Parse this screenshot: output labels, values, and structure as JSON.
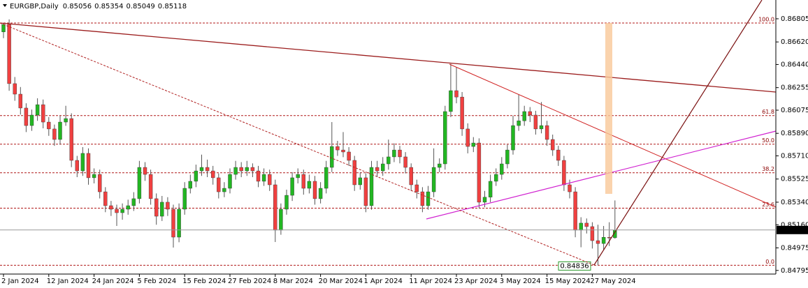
{
  "chart_data": {
    "type": "candlestick",
    "title": "EURGBP,Daily",
    "ylim": [
      0.84766,
      0.86955
    ],
    "yticks": [
      0.86805,
      {
        "value": 0.8662,
        "label": "0.86620"
      },
      {
        "value": 0.8644,
        "label": "0.86440"
      },
      0.86255,
      0.86075,
      {
        "value": 0.8589,
        "label": "0.85890"
      },
      {
        "value": 0.8571,
        "label": "0.85710"
      },
      0.85525,
      {
        "value": 0.8534,
        "label": "0.85340"
      },
      {
        "value": 0.8516,
        "label": "0.85160"
      },
      0.84975,
      0.84795
    ],
    "categories": [
      "2 Jan 2024",
      null,
      null,
      null,
      null,
      null,
      null,
      null,
      "12 Jan 2024",
      null,
      null,
      null,
      null,
      null,
      null,
      null,
      "24 Jan 2024",
      null,
      null,
      null,
      null,
      null,
      null,
      null,
      "5 Feb 2024",
      null,
      null,
      null,
      null,
      null,
      null,
      null,
      "15 Feb 2024",
      null,
      null,
      null,
      null,
      null,
      null,
      null,
      "27 Feb 2024",
      null,
      null,
      null,
      null,
      null,
      null,
      null,
      "8 Mar 2024",
      null,
      null,
      null,
      null,
      null,
      null,
      null,
      "20 Mar 2024",
      null,
      null,
      null,
      null,
      null,
      null,
      null,
      "1 Apr 2024",
      null,
      null,
      null,
      null,
      null,
      null,
      null,
      "11 Apr 2024",
      null,
      null,
      null,
      null,
      null,
      null,
      null,
      "23 Apr 2024",
      null,
      null,
      null,
      null,
      null,
      null,
      null,
      "3 May 2024",
      null,
      null,
      null,
      null,
      null,
      null,
      null,
      "15 May 2024",
      null,
      null,
      null,
      null,
      null,
      null,
      null,
      "27 May 2024",
      null,
      null,
      null,
      null
    ],
    "up_color": "#22b622",
    "down_color": "#f04040",
    "series": [
      {
        "name": "EURGBP",
        "values": [
          [
            0.867,
            0.86771,
            0.8665,
            0.8676
          ],
          [
            0.8676,
            0.868,
            0.8623,
            0.86287
          ],
          [
            0.86287,
            0.8634,
            0.8615,
            0.86203
          ],
          [
            0.86203,
            0.8626,
            0.8604,
            0.86092
          ],
          [
            0.86092,
            0.8613,
            0.859,
            0.85952
          ],
          [
            0.85952,
            0.8608,
            0.8591,
            0.86036
          ],
          [
            0.86036,
            0.8617,
            0.8599,
            0.86119
          ],
          [
            0.86119,
            0.8616,
            0.8593,
            0.8598
          ],
          [
            0.8598,
            0.8602,
            0.8587,
            0.85925
          ],
          [
            0.85925,
            0.8596,
            0.8579,
            0.85841
          ],
          [
            0.85841,
            0.8603,
            0.858,
            0.8598
          ],
          [
            0.8598,
            0.8611,
            0.8595,
            0.86008
          ],
          [
            0.86008,
            0.8605,
            0.8562,
            0.85674
          ],
          [
            0.85674,
            0.8571,
            0.8554,
            0.8559
          ],
          [
            0.8559,
            0.8578,
            0.8555,
            0.8573
          ],
          [
            0.8573,
            0.8577,
            0.8548,
            0.85535
          ],
          [
            0.85535,
            0.8561,
            0.8549,
            0.85562
          ],
          [
            0.85562,
            0.856,
            0.8537,
            0.85423
          ],
          [
            0.85423,
            0.8546,
            0.8526,
            0.85312
          ],
          [
            0.85312,
            0.8535,
            0.8523,
            0.85284
          ],
          [
            0.85284,
            0.8532,
            0.8515,
            0.85256
          ],
          [
            0.85256,
            0.8533,
            0.852,
            0.85284
          ],
          [
            0.85284,
            0.8536,
            0.8524,
            0.85312
          ],
          [
            0.85312,
            0.8542,
            0.8527,
            0.85368
          ],
          [
            0.85368,
            0.8567,
            0.8533,
            0.85618
          ],
          [
            0.85618,
            0.8566,
            0.8551,
            0.85562
          ],
          [
            0.85562,
            0.856,
            0.8532,
            0.85368
          ],
          [
            0.85368,
            0.8541,
            0.8516,
            0.85228
          ],
          [
            0.85228,
            0.8539,
            0.8519,
            0.8534
          ],
          [
            0.8534,
            0.8538,
            0.8523,
            0.85284
          ],
          [
            0.85284,
            0.8532,
            0.84978,
            0.85061
          ],
          [
            0.85061,
            0.8533,
            0.8502,
            0.85284
          ],
          [
            0.85284,
            0.855,
            0.8524,
            0.85451
          ],
          [
            0.85451,
            0.8556,
            0.8541,
            0.85507
          ],
          [
            0.85507,
            0.8564,
            0.8546,
            0.8559
          ],
          [
            0.8559,
            0.8572,
            0.8555,
            0.85618
          ],
          [
            0.85618,
            0.8568,
            0.8554,
            0.8559
          ],
          [
            0.8559,
            0.8563,
            0.8548,
            0.85535
          ],
          [
            0.85535,
            0.8557,
            0.8537,
            0.85423
          ],
          [
            0.85423,
            0.855,
            0.8538,
            0.85451
          ],
          [
            0.85451,
            0.8561,
            0.8541,
            0.85562
          ],
          [
            0.85562,
            0.8567,
            0.8552,
            0.85618
          ],
          [
            0.85618,
            0.8566,
            0.8554,
            0.8559
          ],
          [
            0.8559,
            0.8567,
            0.8555,
            0.85618
          ],
          [
            0.85618,
            0.8565,
            0.8554,
            0.8559
          ],
          [
            0.8559,
            0.8563,
            0.8546,
            0.85507
          ],
          [
            0.85507,
            0.8561,
            0.8547,
            0.85562
          ],
          [
            0.85562,
            0.856,
            0.8543,
            0.85479
          ],
          [
            0.85479,
            0.8552,
            0.85022,
            0.85117
          ],
          [
            0.85117,
            0.8533,
            0.8508,
            0.85284
          ],
          [
            0.85284,
            0.8544,
            0.8524,
            0.85395
          ],
          [
            0.85395,
            0.8558,
            0.8535,
            0.85535
          ],
          [
            0.85535,
            0.8561,
            0.8549,
            0.85562
          ],
          [
            0.85562,
            0.856,
            0.854,
            0.85451
          ],
          [
            0.85451,
            0.8556,
            0.8541,
            0.85507
          ],
          [
            0.85507,
            0.8555,
            0.8532,
            0.85368
          ],
          [
            0.85368,
            0.855,
            0.8533,
            0.85451
          ],
          [
            0.85451,
            0.8567,
            0.8541,
            0.85618
          ],
          [
            0.85618,
            0.8598,
            0.8558,
            0.85785
          ],
          [
            0.85785,
            0.8583,
            0.8571,
            0.85757
          ],
          [
            0.85757,
            0.859,
            0.857,
            0.85741
          ],
          [
            0.85741,
            0.8578,
            0.8563,
            0.85674
          ],
          [
            0.85674,
            0.8571,
            0.8543,
            0.85479
          ],
          [
            0.85479,
            0.8558,
            0.8544,
            0.85535
          ],
          [
            0.85535,
            0.8557,
            0.8526,
            0.85312
          ],
          [
            0.85312,
            0.8567,
            0.8528,
            0.85618
          ],
          [
            0.85618,
            0.8567,
            0.8554,
            0.8559
          ],
          [
            0.8559,
            0.857,
            0.8555,
            0.85646
          ],
          [
            0.85646,
            0.8584,
            0.856,
            0.85702
          ],
          [
            0.85702,
            0.8581,
            0.8566,
            0.85757
          ],
          [
            0.85757,
            0.8579,
            0.8565,
            0.85702
          ],
          [
            0.85702,
            0.8574,
            0.8557,
            0.85618
          ],
          [
            0.85618,
            0.8565,
            0.8543,
            0.85479
          ],
          [
            0.85479,
            0.8552,
            0.8537,
            0.85423
          ],
          [
            0.85423,
            0.8546,
            0.8526,
            0.85312
          ],
          [
            0.85312,
            0.8547,
            0.8528,
            0.85423
          ],
          [
            0.85423,
            0.8577,
            0.8538,
            0.85618
          ],
          [
            0.85618,
            0.8569,
            0.8558,
            0.85646
          ],
          [
            0.85646,
            0.8611,
            0.856,
            0.86064
          ],
          [
            0.86064,
            0.86445,
            0.8602,
            0.86231
          ],
          [
            0.86231,
            0.8642,
            0.8613,
            0.8618
          ],
          [
            0.8618,
            0.8622,
            0.8587,
            0.85925
          ],
          [
            0.85925,
            0.8597,
            0.8573,
            0.85785
          ],
          [
            0.85785,
            0.8586,
            0.8574,
            0.85813
          ],
          [
            0.85813,
            0.8585,
            0.8529,
            0.8534
          ],
          [
            0.8534,
            0.8543,
            0.853,
            0.8538
          ],
          [
            0.8538,
            0.8556,
            0.8534,
            0.85507
          ],
          [
            0.85507,
            0.8561,
            0.8547,
            0.85562
          ],
          [
            0.85562,
            0.857,
            0.8552,
            0.85646
          ],
          [
            0.85646,
            0.858,
            0.8561,
            0.85757
          ],
          [
            0.85757,
            0.8603,
            0.8572,
            0.85952
          ],
          [
            0.85952,
            0.862,
            0.8591,
            0.8599
          ],
          [
            0.8599,
            0.8611,
            0.8595,
            0.86064
          ],
          [
            0.86064,
            0.861,
            0.8598,
            0.86036
          ],
          [
            0.86036,
            0.8607,
            0.8588,
            0.85925
          ],
          [
            0.85925,
            0.8614,
            0.8589,
            0.85952
          ],
          [
            0.85952,
            0.8599,
            0.8579,
            0.85841
          ],
          [
            0.85841,
            0.8588,
            0.8571,
            0.85757
          ],
          [
            0.85757,
            0.8579,
            0.8563,
            0.85674
          ],
          [
            0.85674,
            0.8571,
            0.8543,
            0.85479
          ],
          [
            0.85479,
            0.8552,
            0.8537,
            0.85423
          ],
          [
            0.85423,
            0.8546,
            0.8506,
            0.85117
          ],
          [
            0.85117,
            0.8522,
            0.8498,
            0.85173
          ],
          [
            0.85173,
            0.8521,
            0.8509,
            0.85145
          ],
          [
            0.85145,
            0.8518,
            0.8497,
            0.85033
          ],
          [
            0.85033,
            0.8516,
            0.84836,
            0.8501
          ],
          [
            0.8501,
            0.8515,
            0.8496,
            0.8506
          ],
          [
            0.8506,
            0.8518,
            0.8499,
            0.85056
          ],
          [
            0.85056,
            0.85354,
            0.85049,
            0.85118
          ]
        ]
      }
    ],
    "fibonacci": {
      "high": 0.86771,
      "low": 0.84836,
      "levels": [
        {
          "value": 100,
          "label": "100.0"
        },
        {
          "value": 61.8,
          "label": "61.8"
        },
        {
          "value": 50,
          "label": "50.0"
        },
        {
          "value": 38.2,
          "label": "38.2"
        },
        {
          "value": 23.6,
          "label": "23.6"
        },
        {
          "value": 0,
          "label": "0.0"
        }
      ]
    }
  }
}
